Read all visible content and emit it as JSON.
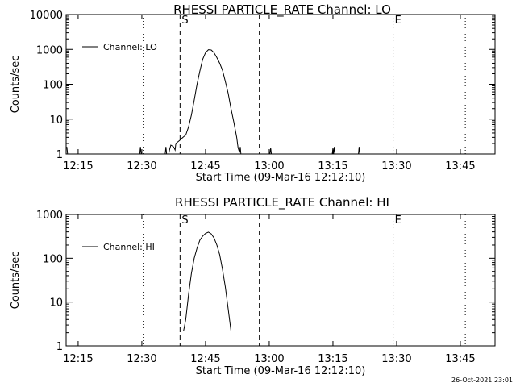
{
  "chart_data": [
    {
      "type": "line",
      "title": "RHESSI PARTICLE_RATE Channel: LO",
      "xlabel": "Start Time (09-Mar-16 12:12:10)",
      "ylabel": "Counts/sec",
      "yscale": "log",
      "ylim": [
        1,
        10000
      ],
      "xlim": [
        "12:12:10",
        "13:53:10"
      ],
      "x_ticks": [
        "12:15",
        "12:30",
        "12:45",
        "13:00",
        "13:15",
        "13:30",
        "13:45"
      ],
      "y_ticks": [
        "1",
        "10",
        "100",
        "1000",
        "10000"
      ],
      "grid": false,
      "legend": "top-left",
      "series": [
        {
          "name": "Channel: LO",
          "points": [
            [
              "12:12:20",
              1.6
            ],
            [
              "12:12:30",
              1
            ],
            [
              "12:29:30",
              1
            ],
            [
              "12:29:40",
              1.6
            ],
            [
              "12:29:50",
              1
            ],
            [
              "12:35:30",
              1
            ],
            [
              "12:35:40",
              1.6
            ],
            [
              "12:35:50",
              1
            ],
            [
              "12:36:20",
              1
            ],
            [
              "12:36:30",
              1.3
            ],
            [
              "12:36:50",
              1.8
            ],
            [
              "12:37:30",
              1.6
            ],
            [
              "12:37:50",
              1.3
            ],
            [
              "12:38:00",
              2
            ],
            [
              "12:39:00",
              2.5
            ],
            [
              "12:39:40",
              3
            ],
            [
              "12:40:20",
              3.5
            ],
            [
              "12:41:00",
              6
            ],
            [
              "12:41:40",
              13
            ],
            [
              "12:42:20",
              35
            ],
            [
              "12:43:00",
              100
            ],
            [
              "12:43:40",
              240
            ],
            [
              "12:44:20",
              520
            ],
            [
              "12:45:00",
              800
            ],
            [
              "12:45:40",
              980
            ],
            [
              "12:46:20",
              960
            ],
            [
              "12:47:00",
              800
            ],
            [
              "12:47:40",
              580
            ],
            [
              "12:48:20",
              400
            ],
            [
              "12:49:00",
              250
            ],
            [
              "12:49:40",
              120
            ],
            [
              "12:50:20",
              55
            ],
            [
              "12:51:00",
              20
            ],
            [
              "12:51:40",
              8
            ],
            [
              "12:52:20",
              3
            ],
            [
              "12:52:40",
              1.5
            ],
            [
              "12:53:00",
              1.1
            ],
            [
              "12:53:10",
              1.6
            ],
            [
              "12:53:20",
              1
            ],
            [
              "13:00:10",
              1
            ],
            [
              "13:00:20",
              1.5
            ],
            [
              "13:00:30",
              1
            ],
            [
              "13:14:50",
              1
            ],
            [
              "13:15:00",
              1.5
            ],
            [
              "13:15:10",
              1
            ],
            [
              "13:15:20",
              1.6
            ],
            [
              "13:15:30",
              1
            ],
            [
              "13:21:00",
              1
            ],
            [
              "13:21:10",
              1.6
            ],
            [
              "13:21:20",
              1
            ]
          ]
        }
      ],
      "lines": [
        {
          "kind": "dotted",
          "x": "12:12:10"
        },
        {
          "kind": "dotted",
          "x": "12:30:20"
        },
        {
          "kind": "dashed",
          "x": "12:39:00",
          "label": "S"
        },
        {
          "kind": "dashed",
          "x": "12:57:40"
        },
        {
          "kind": "dotted",
          "x": "13:29:10",
          "label": "E"
        },
        {
          "kind": "dotted",
          "x": "13:46:10"
        }
      ]
    },
    {
      "type": "line",
      "title": "RHESSI PARTICLE_RATE Channel: HI",
      "xlabel": "Start Time (09-Mar-16 12:12:10)",
      "ylabel": "Counts/sec",
      "yscale": "log",
      "ylim": [
        1,
        1000
      ],
      "xlim": [
        "12:12:10",
        "13:53:10"
      ],
      "x_ticks": [
        "12:15",
        "12:30",
        "12:45",
        "13:00",
        "13:15",
        "13:30",
        "13:45"
      ],
      "y_ticks": [
        "1",
        "10",
        "100",
        "1000"
      ],
      "grid": false,
      "legend": "top-left",
      "series": [
        {
          "name": "Channel: HI",
          "points": [
            [
              "12:39:50",
              2.2
            ],
            [
              "12:40:20",
              4
            ],
            [
              "12:41:00",
              15
            ],
            [
              "12:41:40",
              45
            ],
            [
              "12:42:20",
              100
            ],
            [
              "12:43:00",
              170
            ],
            [
              "12:43:40",
              260
            ],
            [
              "12:44:20",
              320
            ],
            [
              "12:45:00",
              370
            ],
            [
              "12:45:40",
              395
            ],
            [
              "12:46:20",
              360
            ],
            [
              "12:47:00",
              290
            ],
            [
              "12:47:40",
              200
            ],
            [
              "12:48:20",
              120
            ],
            [
              "12:49:00",
              55
            ],
            [
              "12:49:40",
              22
            ],
            [
              "12:50:20",
              7
            ],
            [
              "12:51:00",
              2.2
            ]
          ]
        }
      ],
      "lines": [
        {
          "kind": "dotted",
          "x": "12:12:10"
        },
        {
          "kind": "dotted",
          "x": "12:30:20"
        },
        {
          "kind": "dashed",
          "x": "12:39:00",
          "label": "S"
        },
        {
          "kind": "dashed",
          "x": "12:57:40"
        },
        {
          "kind": "dotted",
          "x": "13:29:10",
          "label": "E"
        },
        {
          "kind": "dotted",
          "x": "13:46:10"
        }
      ]
    }
  ],
  "footer": {
    "timestamp": "26-Oct-2021 23:01"
  }
}
